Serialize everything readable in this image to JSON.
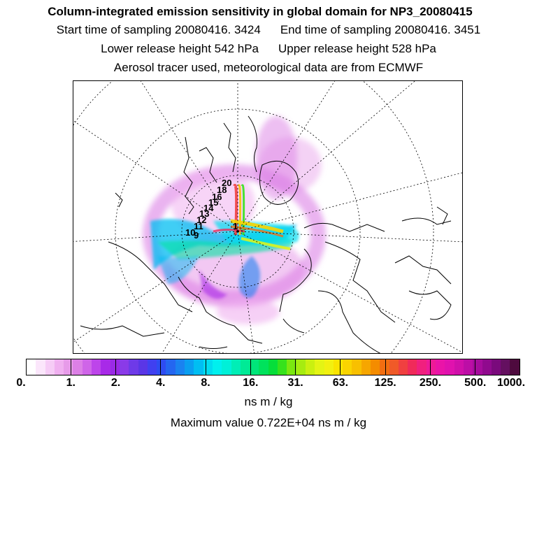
{
  "header": {
    "title": "Column-integrated emission sensitivity in global domain for NP3_20080415",
    "start_label": "Start time of sampling 20080416.  3424",
    "end_label": "End time of sampling 20080416.  3451",
    "lower_label": "Lower release height  542 hPa",
    "upper_label": "Upper release height  528 hPa",
    "info": "Aerosol tracer used, meteorological data are from ECMWF"
  },
  "map": {
    "projection": "polar-stereographic",
    "track_labels": [
      "20",
      "18",
      "16",
      "15",
      "14",
      "13",
      "12",
      "11",
      "10",
      "9",
      "1"
    ]
  },
  "colorbar": {
    "colors": [
      "#ffffff",
      "#fbe6fb",
      "#f6ccf6",
      "#f0b0f0",
      "#e79be9",
      "#dc80e6",
      "#cf65e8",
      "#bd45ea",
      "#a82ae8",
      "#9a2ae6",
      "#8a3ae8",
      "#6e3ae8",
      "#5a36e6",
      "#4040f0",
      "#2e4cf2",
      "#2466f0",
      "#1a82f0",
      "#0a9ef0",
      "#00bef2",
      "#00dcef",
      "#00f0ee",
      "#00f0d8",
      "#00eeb6",
      "#00ea96",
      "#00e67a",
      "#00e25c",
      "#06de3a",
      "#36e21c",
      "#7ae810",
      "#a6ec10",
      "#caf010",
      "#e4f414",
      "#f2f010",
      "#fae400",
      "#fad400",
      "#f8c000",
      "#f6a600",
      "#f48c00",
      "#f26e10",
      "#f05a28",
      "#f04040",
      "#f02a5a",
      "#f0207e",
      "#ee1a98",
      "#ea14a8",
      "#e012ae",
      "#d010aa",
      "#bc0ea6",
      "#a60c9c",
      "#900a8e",
      "#7a0a7c",
      "#641060",
      "#4e0a3e"
    ],
    "labels": [
      "0.",
      "1.",
      "2.",
      "4.",
      "8.",
      "16.",
      "31.",
      "63.",
      "125.",
      "250.",
      "500.",
      "1000."
    ],
    "unit": "ns m / kg"
  },
  "footer": {
    "max_label": "Maximum value  0.722E+04 ns m / kg"
  }
}
